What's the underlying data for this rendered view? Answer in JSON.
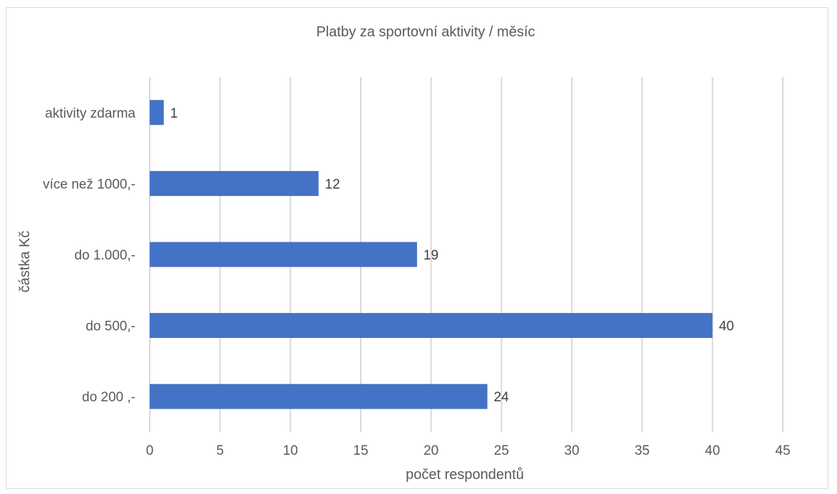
{
  "chart_data": {
    "type": "bar",
    "orientation": "horizontal",
    "title": "Platby za sportovní aktivity / měsíc",
    "xlabel": "počet respondentů",
    "ylabel": "částka Kč",
    "categories": [
      "aktivity zdarma",
      "více než 1000,-",
      "do 1.000,-",
      "do 500,-",
      "do 200 ,-"
    ],
    "values": [
      1,
      12,
      19,
      40,
      24
    ],
    "xlim": [
      0,
      45
    ],
    "xticks": [
      "0",
      "5",
      "10",
      "15",
      "20",
      "25",
      "30",
      "35",
      "40",
      "45"
    ],
    "grid": true,
    "data_labels": true,
    "bar_color": "#4472c4"
  }
}
